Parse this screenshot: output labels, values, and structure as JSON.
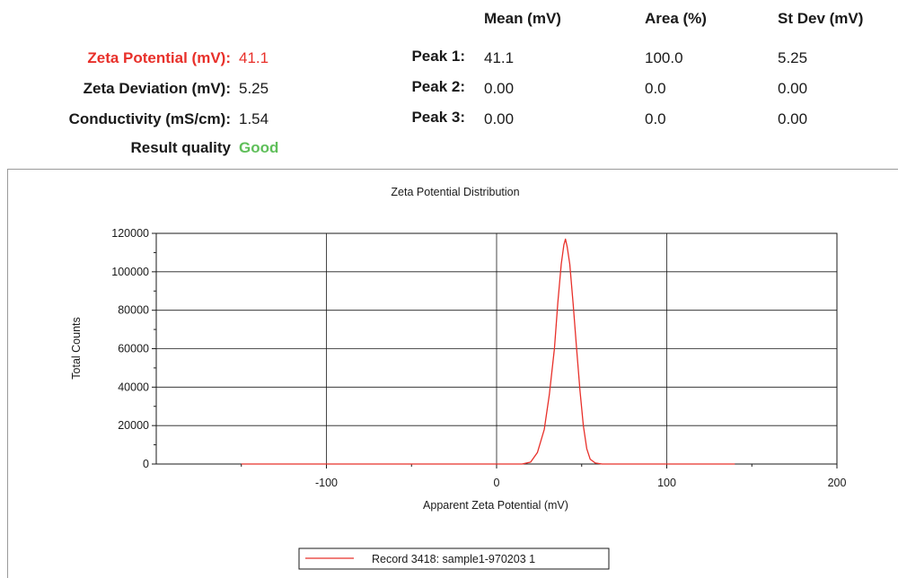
{
  "results": {
    "zeta_potential": {
      "label": "Zeta Potential (mV):",
      "value": "41.1"
    },
    "zeta_deviation": {
      "label": "Zeta Deviation (mV):",
      "value": "5.25"
    },
    "conductivity": {
      "label": "Conductivity (mS/cm):",
      "value": "1.54"
    },
    "result_quality": {
      "label": "Result quality",
      "value": "Good"
    }
  },
  "peaks_table": {
    "headers": {
      "mean": "Mean (mV)",
      "area": "Area (%)",
      "stdev": "St Dev (mV)"
    },
    "rows": [
      {
        "label": "Peak 1:",
        "mean": "41.1",
        "area": "100.0",
        "stdev": "5.25"
      },
      {
        "label": "Peak 2:",
        "mean": "0.00",
        "area": "0.0",
        "stdev": "0.00"
      },
      {
        "label": "Peak 3:",
        "mean": "0.00",
        "area": "0.0",
        "stdev": "0.00"
      }
    ]
  },
  "colors": {
    "highlight": "#e8302a",
    "good": "#5fbf5a",
    "series": "#e8302a"
  },
  "chart_data": {
    "type": "line",
    "title": "Zeta Potential Distribution",
    "xlabel": "Apparent Zeta Potential (mV)",
    "ylabel": "Total Counts",
    "xlim": [
      -200,
      200
    ],
    "ylim": [
      0,
      120000
    ],
    "xticks": [
      -100,
      0,
      100,
      200
    ],
    "yticks": [
      0,
      20000,
      40000,
      60000,
      80000,
      100000,
      120000
    ],
    "grid": true,
    "legend_position": "bottom-center",
    "series": [
      {
        "name": "Record 3418: sample1-970203 1",
        "color": "#e8302a",
        "x": [
          -150,
          15,
          20,
          24,
          28,
          31,
          34,
          36,
          38,
          39.5,
          40.5,
          41.5,
          43,
          45,
          47,
          49,
          51,
          53,
          55,
          58,
          62,
          140
        ],
        "y": [
          0,
          0,
          1000,
          6000,
          18000,
          36000,
          60000,
          84000,
          104000,
          114000,
          117000,
          113000,
          104000,
          83000,
          60000,
          38000,
          20000,
          8000,
          2500,
          500,
          0,
          0
        ]
      }
    ]
  }
}
